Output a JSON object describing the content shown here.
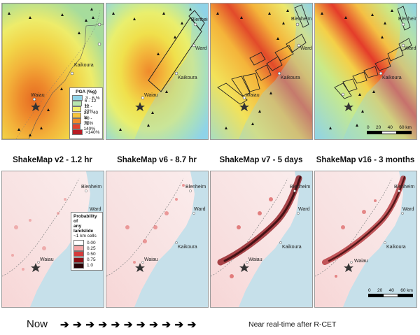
{
  "places": {
    "blenheim": "Blenheim",
    "ward": "Ward",
    "kaikoura": "Kaikoura",
    "waiau": "Waiau"
  },
  "captions": {
    "v2": "ShakeMap v2 - 1.2 hr",
    "v6": "ShakeMap v6 - 8.7 hr",
    "v7": "ShakeMap v7 - 5 days",
    "v16": "ShakeMap v16 - 3 months"
  },
  "pga_legend": {
    "title": "PGA (%g)",
    "items": [
      {
        "label": "3 - 6 %",
        "color": "#8fd3e8"
      },
      {
        "label": "6 - 12 %",
        "color": "#b8e6b0"
      },
      {
        "label": "12 - 22%",
        "color": "#f2ee6a"
      },
      {
        "label": "22 - 40 %",
        "color": "#f6c43c"
      },
      {
        "label": "40 - 75%",
        "color": "#f08a2c"
      },
      {
        "label": "75 - 140%",
        "color": "#e4422c"
      },
      {
        "label": ">140%",
        "color": "#b81c24"
      }
    ]
  },
  "landslide_legend": {
    "title_line1": "Probability of",
    "title_line2": "any landslide",
    "title_line3": "~1 km cells",
    "items": [
      {
        "label": "0.00",
        "color": "#ffffff"
      },
      {
        "label": "0.25",
        "color": "#f4a6a6"
      },
      {
        "label": "0.50",
        "color": "#d33b3b"
      },
      {
        "label": "0.75",
        "color": "#8c0e14"
      },
      {
        "label": "1.0",
        "color": "#2a0508"
      }
    ]
  },
  "scale": {
    "t0": "0",
    "t1": "20",
    "t2": "40",
    "t3": "60 km"
  },
  "footer": {
    "now": "Now",
    "arrow_count": 11,
    "after": "Near real-time after R-CET"
  }
}
